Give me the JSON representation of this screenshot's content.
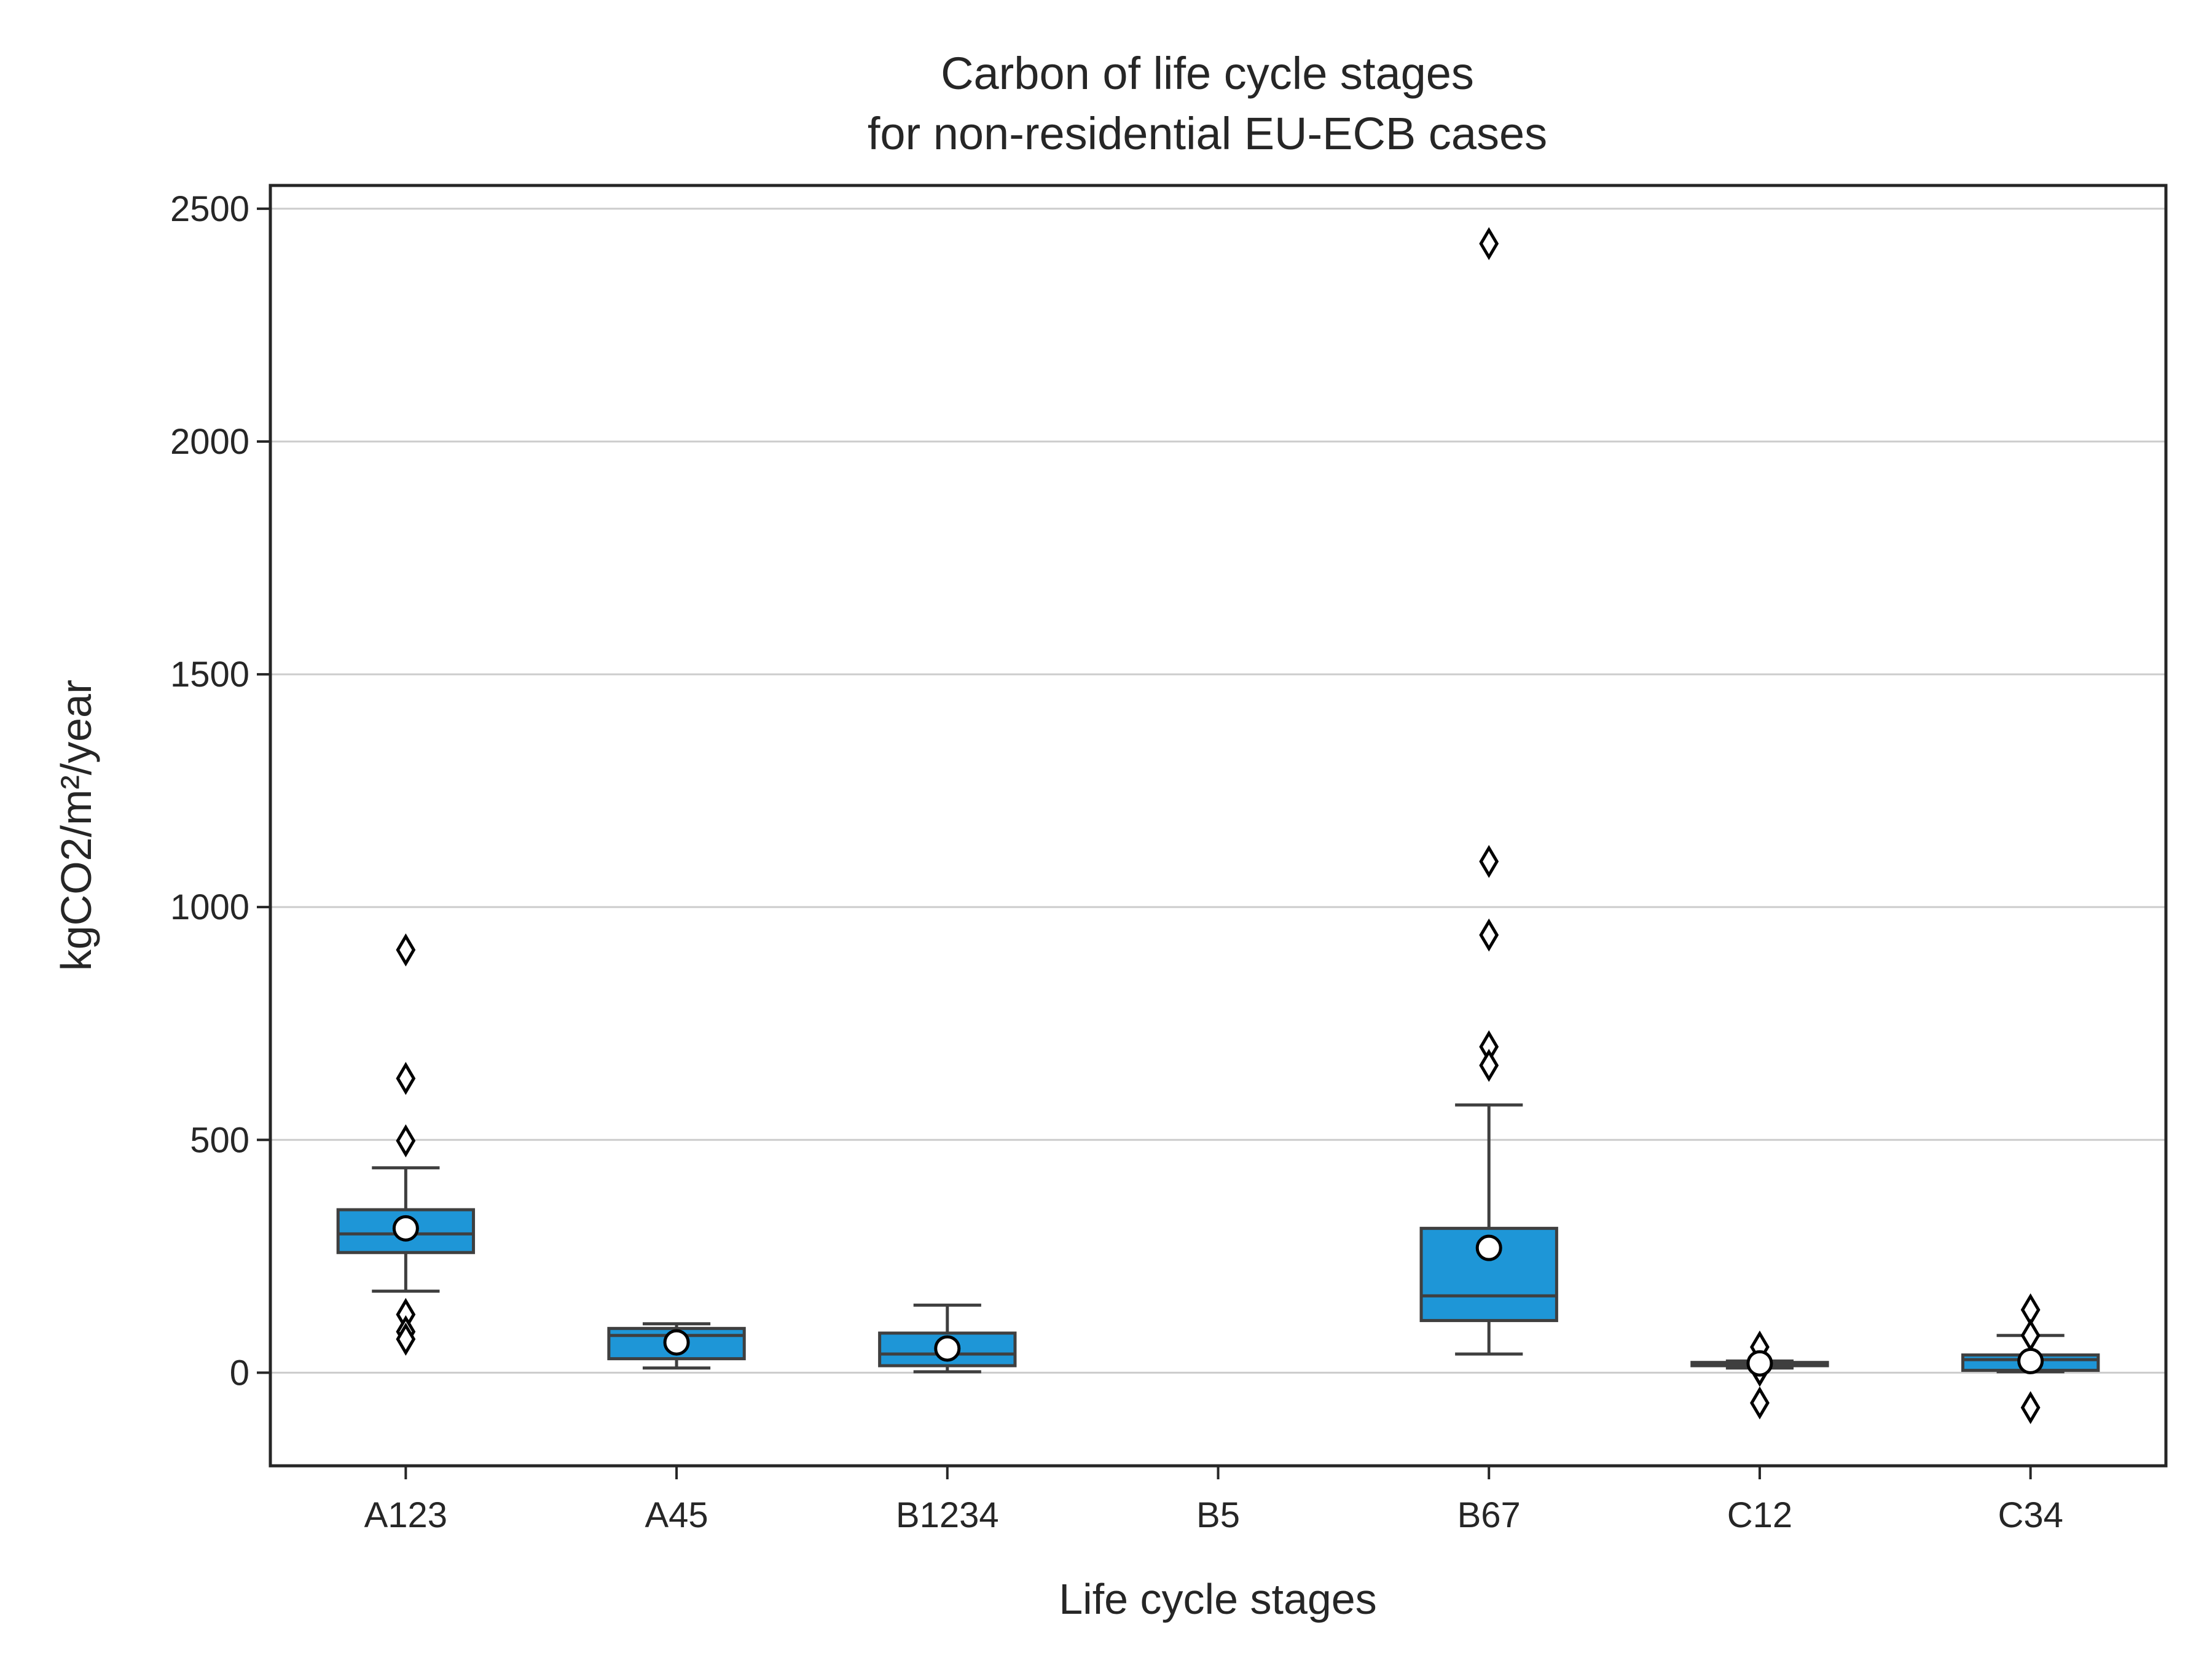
{
  "chart_data": {
    "type": "box",
    "title": [
      "Carbon of life cycle stages",
      "for non-residential EU-ECB cases"
    ],
    "xlabel": "Life cycle stages",
    "ylabel": "kgCO2/m²/year",
    "ylim": [
      -200,
      2550
    ],
    "yticks": [
      0,
      500,
      1000,
      1500,
      2000,
      2500
    ],
    "grid": "horizontal",
    "box_color": "#1e96d7",
    "categories": [
      "A123",
      "A45",
      "B1234",
      "B5",
      "B67",
      "C12",
      "C34"
    ],
    "boxes": [
      {
        "category": "A123",
        "whisker_low": 175,
        "q1": 258,
        "median": 298,
        "q3": 350,
        "whisker_high": 440,
        "mean": 310,
        "outliers": [
          908,
          632,
          498,
          125,
          88,
          72
        ]
      },
      {
        "category": "A45",
        "whisker_low": 10,
        "q1": 30,
        "median": 80,
        "q3": 95,
        "whisker_high": 105,
        "mean": 65,
        "outliers": []
      },
      {
        "category": "B1234",
        "whisker_low": 2,
        "q1": 15,
        "median": 40,
        "q3": 85,
        "whisker_high": 145,
        "mean": 52,
        "outliers": []
      },
      {
        "category": "B5",
        "empty": true
      },
      {
        "category": "B67",
        "whisker_low": 40,
        "q1": 112,
        "median": 165,
        "q3": 310,
        "whisker_high": 575,
        "mean": 268,
        "outliers": [
          2425,
          1098,
          940,
          700,
          660
        ]
      },
      {
        "category": "C12",
        "whisker_low": 10,
        "q1": 15,
        "median": 18,
        "q3": 22,
        "whisker_high": 25,
        "mean": 20,
        "outliers": [
          55,
          5,
          -65
        ]
      },
      {
        "category": "C34",
        "whisker_low": 2,
        "q1": 5,
        "median": 28,
        "q3": 38,
        "whisker_high": 80,
        "mean": 25,
        "outliers": [
          135,
          80,
          -75
        ]
      }
    ]
  }
}
